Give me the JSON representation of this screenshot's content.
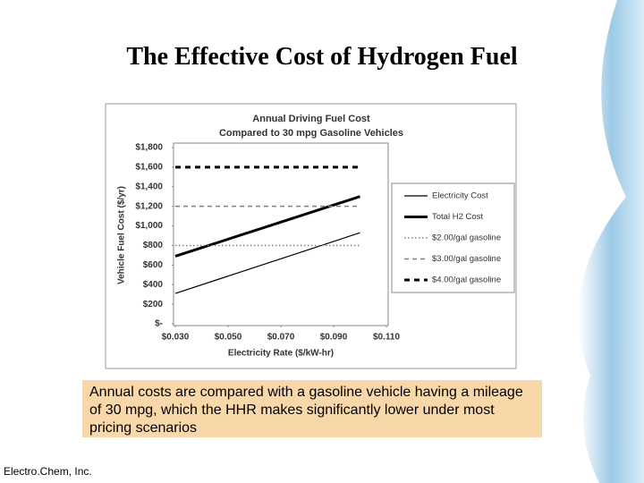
{
  "slide_title": "The Effective Cost of Hydrogen Fuel",
  "caption": "Annual costs are compared with a gasoline vehicle having a mileage of 30 mpg, which the HHR makes significantly lower under most pricing scenarios",
  "footer": "Electro.Chem, Inc.",
  "chart_data": {
    "type": "line",
    "title": "Annual Driving Fuel Cost",
    "subtitle": "Compared to 30 mpg Gasoline Vehicles",
    "x_label": "Electricity Rate ($/kW-hr)",
    "y_label": "Vehicle Fuel Cost ($/yr)",
    "x": [
      0.03,
      0.1
    ],
    "xlim": [
      0.03,
      0.11
    ],
    "xticks": [
      {
        "value": 0.03,
        "label": "$0.030"
      },
      {
        "value": 0.05,
        "label": "$0.050"
      },
      {
        "value": 0.07,
        "label": "$0.070"
      },
      {
        "value": 0.09,
        "label": "$0.090"
      },
      {
        "value": 0.11,
        "label": "$0.110"
      }
    ],
    "ylim": [
      0,
      1800
    ],
    "yticks": [
      {
        "value": 0,
        "label": "$-"
      },
      {
        "value": 200,
        "label": "$200"
      },
      {
        "value": 400,
        "label": "$400"
      },
      {
        "value": 600,
        "label": "$600"
      },
      {
        "value": 800,
        "label": "$800"
      },
      {
        "value": 1000,
        "label": "$1,000"
      },
      {
        "value": 1200,
        "label": "$1,200"
      },
      {
        "value": 1400,
        "label": "$1,400"
      },
      {
        "value": 1600,
        "label": "$1,600"
      },
      {
        "value": 1800,
        "label": "$1,800"
      }
    ],
    "legend": "right",
    "series": [
      {
        "name": "Electricity Cost",
        "color": "#000000",
        "style": "solid",
        "values": [
          310,
          930
        ]
      },
      {
        "name": "Total H2 Cost",
        "color": "#000000",
        "style": "solid-bold",
        "values": [
          690,
          1300
        ]
      },
      {
        "name": "$2.00/gal gasoline",
        "color": "#808080",
        "style": "dotted",
        "values": [
          800,
          800
        ]
      },
      {
        "name": "$3.00/gal gasoline",
        "color": "#808080",
        "style": "dashed",
        "values": [
          1200,
          1200
        ]
      },
      {
        "name": "$4.00/gal gasoline",
        "color": "#000000",
        "style": "dashed-bold",
        "values": [
          1600,
          1600
        ]
      }
    ]
  }
}
